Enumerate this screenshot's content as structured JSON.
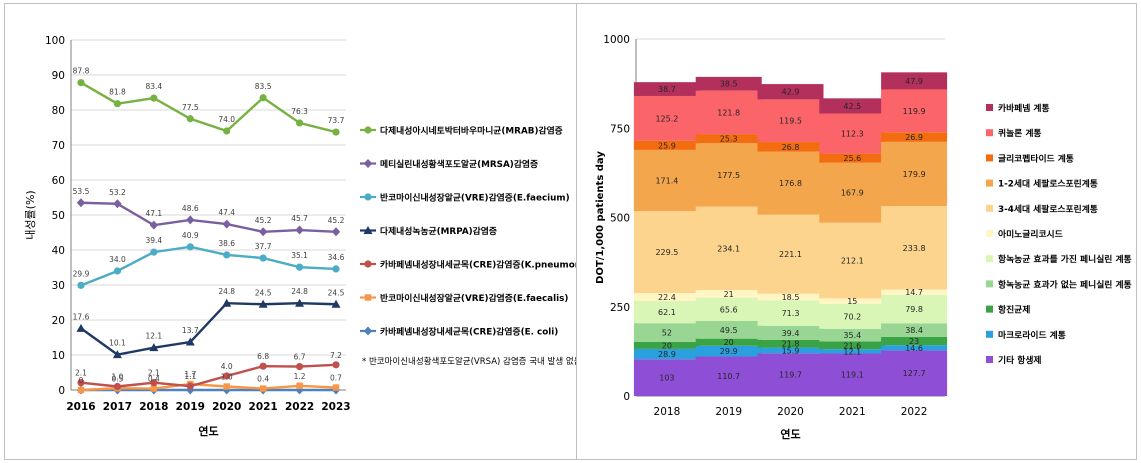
{
  "chart_data": [
    {
      "type": "line",
      "xlabel": "연도",
      "ylabel": "내성률(%)",
      "ylim": [
        0,
        100
      ],
      "yticks": [
        0,
        10,
        20,
        30,
        40,
        50,
        60,
        70,
        80,
        90,
        100
      ],
      "x": [
        "2016",
        "2017",
        "2018",
        "2019",
        "2020",
        "2021",
        "2022",
        "2023"
      ],
      "legend_position": "right",
      "series": [
        {
          "name": "다제내성아시네토박터바우마니균(MRAB)감염증",
          "color": "#77b142",
          "marker": "circle",
          "values": [
            87.8,
            81.8,
            83.4,
            77.5,
            74.0,
            83.5,
            76.3,
            73.7
          ],
          "labels": [
            "87.8",
            "81.8",
            "83.4",
            "77.5",
            "74.0",
            "83.5",
            "76.3",
            "73.7"
          ]
        },
        {
          "name": "메티실린내성황색포도알균(MRSA)감염증",
          "color": "#7a5fa0",
          "marker": "diamond",
          "values": [
            53.5,
            53.2,
            47.1,
            48.6,
            47.4,
            45.2,
            45.7,
            45.2
          ],
          "labels": [
            "53.5",
            "53.2",
            "47.1",
            "48.6",
            "47.4",
            "45.2",
            "45.7",
            "45.2"
          ]
        },
        {
          "name": "반코마이신내성장알균(VRE)감염증(E.faecium)",
          "color": "#4bacc6",
          "marker": "circle",
          "values": [
            29.9,
            34.0,
            39.4,
            40.9,
            38.6,
            37.7,
            35.1,
            34.6
          ],
          "labels": [
            "29.9",
            "34.0",
            "39.4",
            "40.9",
            "38.6",
            "37.7",
            "35.1",
            "34.6"
          ]
        },
        {
          "name": "다제내성녹농균(MRPA)감염증",
          "color": "#1f3864",
          "marker": "triangle",
          "values": [
            17.6,
            10.1,
            12.1,
            13.7,
            24.8,
            24.5,
            24.8,
            24.5
          ],
          "labels": [
            "17.6",
            "10.1",
            "12.1",
            "13.7",
            "24.8",
            "24.5",
            "24.8",
            "24.5"
          ]
        },
        {
          "name": "카바페넴내성장내세균목(CRE)감염증(K.pneumoniae)",
          "color": "#c0504d",
          "marker": "circle",
          "values": [
            2.1,
            1.0,
            2.1,
            1.1,
            4.0,
            6.8,
            6.7,
            7.2
          ],
          "labels": [
            "2.1",
            "1.0",
            "2.1",
            "1.1",
            "4.0",
            "6.8",
            "6.7",
            "7.2"
          ]
        },
        {
          "name": "반코마이신내성장알균(VRE)감염증(E.faecalis)",
          "color": "#f79646",
          "marker": "square",
          "values": [
            0,
            0.5,
            0.4,
            1.7,
            1.0,
            0.4,
            1.2,
            0.7
          ],
          "labels": [
            "0",
            "0.5",
            "0.4",
            "1.7",
            "1.0",
            "0.4",
            "1.2",
            "0.7"
          ]
        },
        {
          "name": "카바페넴내성장내세균목(CRE)감염증(E. coli)",
          "color": "#4f81bd",
          "marker": "diamond",
          "values": [
            0,
            0,
            0,
            0,
            0,
            0,
            0,
            0
          ],
          "labels": [
            "",
            "",
            "",
            "",
            "",
            "",
            "",
            ""
          ]
        }
      ],
      "annotation": "* 반코마이신내성황색포도알균(VRSA) 감염증 국내 발생 없음"
    },
    {
      "type": "bar",
      "stacked": true,
      "xlabel": "연도",
      "ylabel": "DOT/1,000 patients day",
      "ylim": [
        0,
        1000
      ],
      "yticks": [
        0,
        250,
        500,
        750,
        1000
      ],
      "categories": [
        "2018",
        "2019",
        "2020",
        "2021",
        "2022"
      ],
      "legend_position": "right",
      "series": [
        {
          "name": "기타 항생제",
          "color": "#8e4fd6",
          "values": [
            103,
            110.7,
            119.7,
            119.1,
            127.7
          ],
          "labels": [
            "103",
            "110.7",
            "119.7",
            "119.1",
            "127.7"
          ]
        },
        {
          "name": "마크로라이드 계통",
          "color": "#2aa0de",
          "values": [
            28.9,
            29.9,
            15.9,
            12.1,
            14.6
          ],
          "labels": [
            "28.9",
            "29.9",
            "15.9",
            "12.1",
            "14.6"
          ]
        },
        {
          "name": "항진균제",
          "color": "#3aa345",
          "values": [
            20,
            20,
            21.8,
            21.6,
            23
          ],
          "labels": [
            "20",
            "20",
            "21.8",
            "21.6",
            "23"
          ]
        },
        {
          "name": "항녹농균 효과가 없는 페니실린 계통",
          "color": "#99d593",
          "values": [
            52,
            49.5,
            39.4,
            35.4,
            38.4
          ],
          "labels": [
            "52",
            "49.5",
            "39.4",
            "35.4",
            "38.4"
          ]
        },
        {
          "name": "항녹농균 효과를 가진 페니실린 계통",
          "color": "#d9f6b6",
          "values": [
            62.1,
            65.6,
            71.3,
            70.2,
            79.8
          ],
          "labels": [
            "62.1",
            "65.6",
            "71.3",
            "70.2",
            "79.8"
          ]
        },
        {
          "name": "아미노글리코시드",
          "color": "#fff6c4",
          "values": [
            22.4,
            21,
            18.5,
            15,
            14.7
          ],
          "labels": [
            "22.4",
            "21",
            "18.5",
            "15",
            "14.7"
          ]
        },
        {
          "name": "3-4세대 세팔로스포린계통",
          "color": "#fcd48e",
          "values": [
            229.5,
            234.1,
            221.1,
            212.1,
            233.8
          ],
          "labels": [
            "229.5",
            "234.1",
            "221.1",
            "212.1",
            "233.8"
          ]
        },
        {
          "name": "1-2세대 세팔로스포린계통",
          "color": "#f4a64c",
          "values": [
            171.4,
            177.5,
            176.8,
            167.9,
            179.9
          ],
          "labels": [
            "171.4",
            "177.5",
            "176.8",
            "167.9",
            "179.9"
          ]
        },
        {
          "name": "글리코펩타이드 계통",
          "color": "#f36d10",
          "values": [
            25.9,
            25.3,
            26.8,
            25.6,
            26.9
          ],
          "labels": [
            "25.9",
            "25.3",
            "26.8",
            "25.6",
            "26.9"
          ]
        },
        {
          "name": "퀴놀론 계통",
          "color": "#fb6469",
          "values": [
            125.2,
            121.8,
            119.5,
            112.3,
            119.9
          ],
          "labels": [
            "125.2",
            "121.8",
            "119.5",
            "112.3",
            "119.9"
          ]
        },
        {
          "name": "카바페넴 계통",
          "color": "#b3305d",
          "values": [
            38.7,
            38.5,
            42.9,
            42.5,
            47.9
          ],
          "labels": [
            "38.7",
            "38.5",
            "42.9",
            "42.5",
            "47.9"
          ]
        }
      ]
    }
  ]
}
